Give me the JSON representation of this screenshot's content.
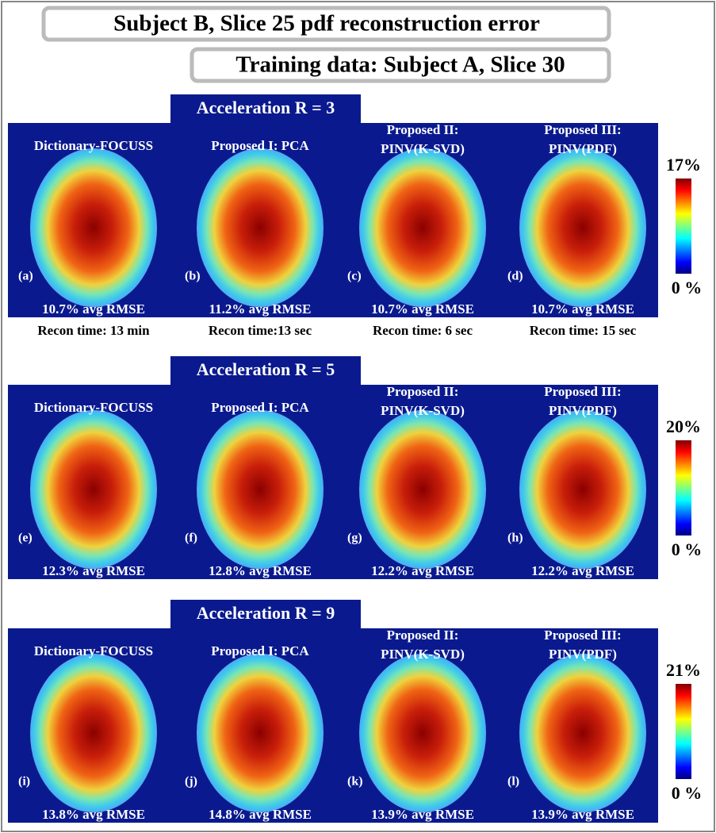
{
  "title": "Subject B, Slice 25 pdf reconstruction error",
  "subtitle": "Training data: Subject A, Slice 30",
  "panels": [
    {
      "heading": "Acceleration R = 3",
      "colorbar": {
        "max": "17%",
        "min": "0 %"
      },
      "images": [
        {
          "method": [
            "Dictionary-FOCUSS"
          ],
          "tag": "(a)",
          "rmse": "10.7% avg RMSE",
          "recon_time": "Recon time: 13 min"
        },
        {
          "method": [
            "Proposed I: PCA"
          ],
          "tag": "(b)",
          "rmse": "11.2% avg RMSE",
          "recon_time": "Recon time:13 sec"
        },
        {
          "method": [
            "Proposed II:",
            "PINV(K-SVD)"
          ],
          "tag": "(c)",
          "rmse": "10.7% avg RMSE",
          "recon_time": "Recon time: 6 sec"
        },
        {
          "method": [
            "Proposed III:",
            "PINV(PDF)"
          ],
          "tag": "(d)",
          "rmse": "10.7% avg RMSE",
          "recon_time": "Recon time: 15 sec"
        }
      ]
    },
    {
      "heading": "Acceleration R = 5",
      "colorbar": {
        "max": "20%",
        "min": "0 %"
      },
      "images": [
        {
          "method": [
            "Dictionary-FOCUSS"
          ],
          "tag": "(e)",
          "rmse": "12.3% avg RMSE"
        },
        {
          "method": [
            "Proposed I: PCA"
          ],
          "tag": "(f)",
          "rmse": "12.8% avg RMSE"
        },
        {
          "method": [
            "Proposed II:",
            "PINV(K-SVD)"
          ],
          "tag": "(g)",
          "rmse": "12.2% avg RMSE"
        },
        {
          "method": [
            "Proposed III:",
            "PINV(PDF)"
          ],
          "tag": "(h)",
          "rmse": "12.2% avg RMSE"
        }
      ]
    },
    {
      "heading": "Acceleration R = 9",
      "colorbar": {
        "max": "21%",
        "min": "0 %"
      },
      "images": [
        {
          "method": [
            "Dictionary-FOCUSS"
          ],
          "tag": "(i)",
          "rmse": "13.8% avg RMSE"
        },
        {
          "method": [
            "Proposed I: PCA"
          ],
          "tag": "(j)",
          "rmse": "14.8% avg RMSE"
        },
        {
          "method": [
            "Proposed II:",
            "PINV(K-SVD)"
          ],
          "tag": "(k)",
          "rmse": "13.9% avg RMSE"
        },
        {
          "method": [
            "Proposed III:",
            "PINV(PDF)"
          ],
          "tag": "(l)",
          "rmse": "13.9% avg RMSE"
        }
      ]
    }
  ]
}
